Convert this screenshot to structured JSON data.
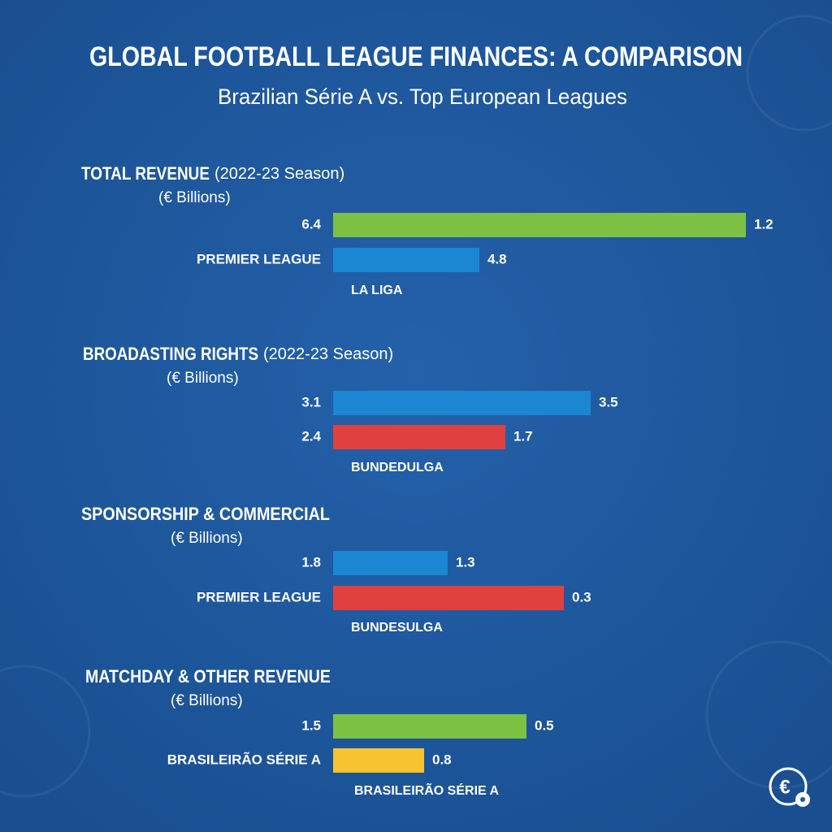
{
  "header": {
    "title": "GLOBAL FOOTBALL LEAGUE FINANCES: A COMPARISON",
    "subtitle": "Brazilian Série A vs. Top European Leagues"
  },
  "sections": [
    {
      "heading": "TOTAL REVENUE",
      "note": "(2022-23 Season)",
      "unit": "(€ Billions)",
      "rows": [
        {
          "left": "6.4",
          "right": "1.2",
          "color": "#7cc144"
        },
        {
          "left": "PREMIER LEAGUE",
          "right": "4.8",
          "color": "#1b86d2"
        }
      ],
      "caption": "LA LIGA"
    },
    {
      "heading": "BROADASTING RIGHTS",
      "note": "(2022-23 Season)",
      "unit": "(€ Billions)",
      "rows": [
        {
          "left": "3.1",
          "right": "3.5",
          "color": "#1b86d2"
        },
        {
          "left": "2.4",
          "right": "1.7",
          "color": "#e0403f"
        }
      ],
      "caption": "BUNDEDULGA"
    },
    {
      "heading": "SPONSORSHIP & COMMERCIAL",
      "unit": "(€ Billions)",
      "rows": [
        {
          "left": "1.8",
          "right": "1.3",
          "color": "#1b86d2"
        },
        {
          "left": "PREMIER LEAGUE",
          "right": "0.3",
          "color": "#e0403f"
        }
      ],
      "caption": "BUNDESULGA"
    },
    {
      "heading": "MATCHDAY & OTHER REVENUE",
      "unit": "(€ Billions)",
      "rows": [
        {
          "left": "1.5",
          "right": "0.5",
          "color": "#7cc144"
        },
        {
          "left": "BRASILEIRÃO SÉRIE A",
          "right": "0.8",
          "color": "#f6c431"
        }
      ],
      "caption": "BRASILEIRÃO SÉRIE A"
    }
  ]
}
